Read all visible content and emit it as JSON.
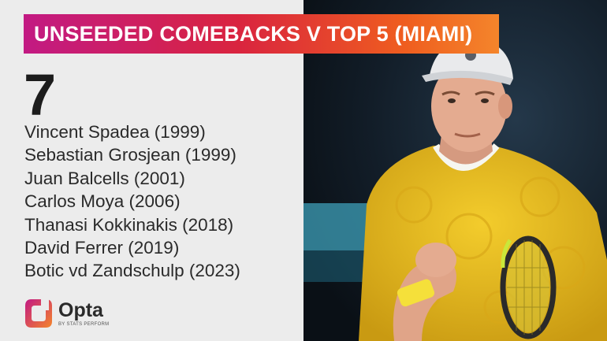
{
  "title": "UNSEEDED COMEBACKS V TOP 5 (MIAMI)",
  "count": "7",
  "players": [
    "Vincent Spadea (1999)",
    "Sebastian Grosjean (1999)",
    "Juan Balcells (2001)",
    "Carlos Moya (2006)",
    "Thanasi Kokkinakis (2018)",
    "David Ferrer (2019)",
    "Botic vd Zandschulp (2023)"
  ],
  "brand": {
    "name": "Opta",
    "tagline": "BY STATS PERFORM",
    "logo_icon": "opta-logo-icon",
    "colors": {
      "pink": "#c21a83",
      "orange": "#f4852b"
    }
  },
  "photo": {
    "subject": "tennis-player-photo",
    "shirt_color": "#e8b81e",
    "background": "#101820"
  }
}
